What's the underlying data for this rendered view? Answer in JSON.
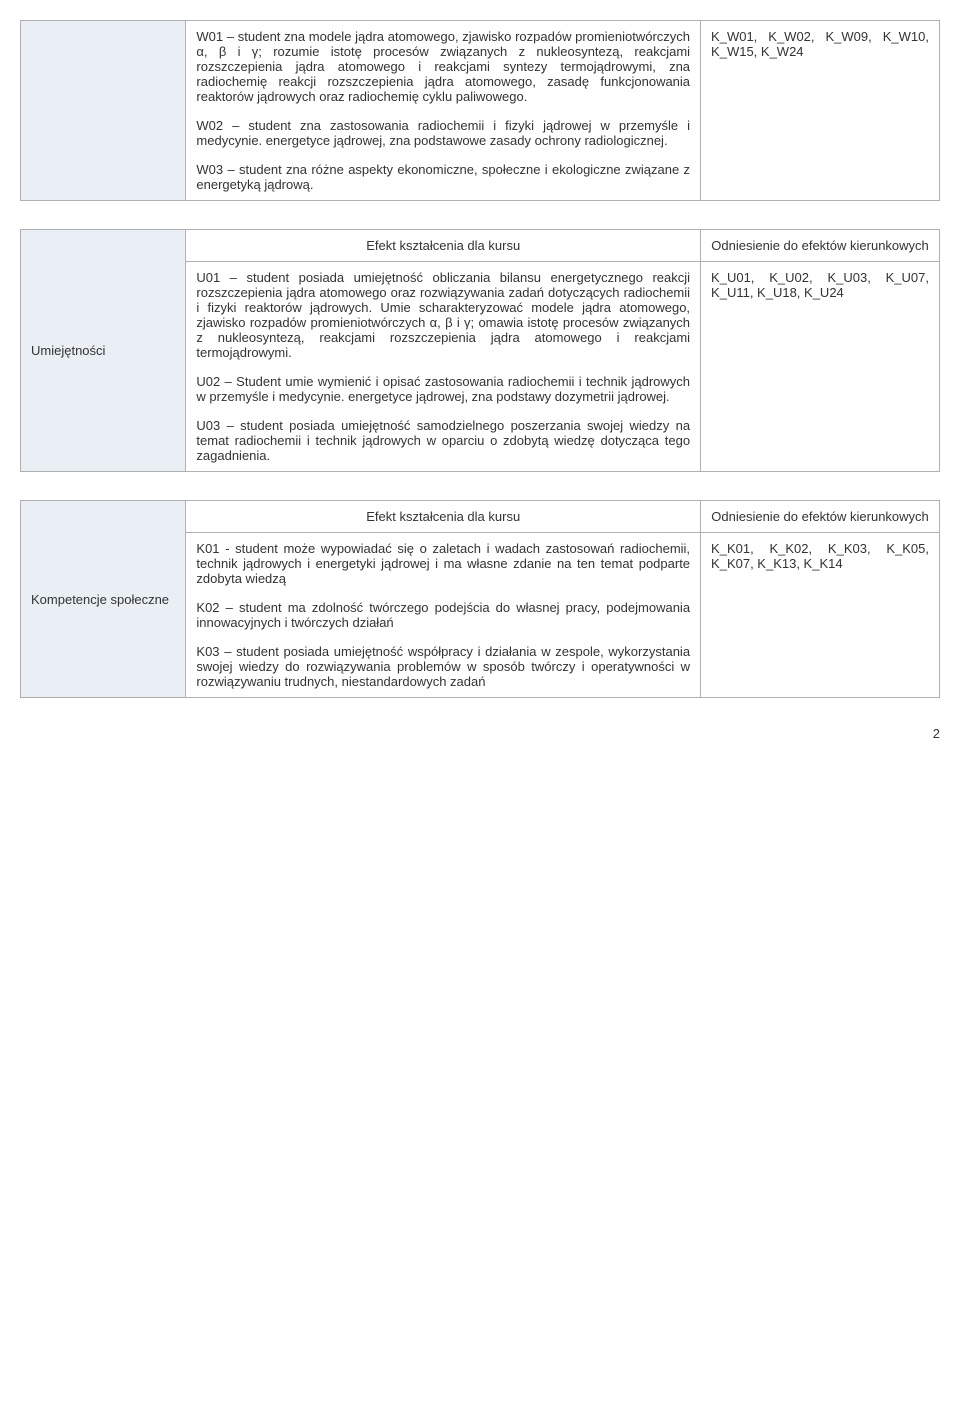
{
  "table1": {
    "row1": {
      "left": "",
      "mid_p1": "W01 – student zna modele jądra atomowego, zjawisko rozpadów promieniotwórczych α, β i γ; rozumie istotę procesów związanych z nukleosyntezą, reakcjami rozszczepienia jądra atomowego i reakcjami syntezy termojądrowymi, zna radiochemię reakcji rozszczepienia jądra atomowego, zasadę funkcjonowania reaktorów jądrowych oraz radiochemię cyklu paliwowego.",
      "mid_p2": "W02 – student zna zastosowania radiochemii i fizyki jądrowej w przemyśle i medycynie. energetyce jądrowej, zna podstawowe zasady ochrony radiologicznej.",
      "mid_p3": "W03 – student zna różne aspekty ekonomiczne, społeczne i ekologiczne związane z energetyką jądrową.",
      "right": "K_W01, K_W02, K_W09, K_W10, K_W15, K_W24"
    }
  },
  "table2": {
    "header": {
      "mid": "Efekt kształcenia dla kursu",
      "right": "Odniesienie do efektów kierunkowych"
    },
    "row1": {
      "left": "Umiejętności",
      "mid_p1": "U01 – student posiada umiejętność obliczania bilansu energetycznego reakcji rozszczepienia jądra atomowego oraz rozwiązywania zadań dotyczących radiochemii i fizyki reaktorów jądrowych. Umie scharakteryzować modele jądra atomowego, zjawisko rozpadów promieniotwórczych α, β i γ; omawia istotę procesów związanych z nukleosyntezą, reakcjami rozszczepienia jądra atomowego i reakcjami termojądrowymi.",
      "mid_p2": "U02 – Student umie wymienić i opisać zastosowania radiochemii i technik jądrowych w przemyśle i medycynie. energetyce jądrowej, zna podstawy dozymetrii jądrowej.",
      "mid_p3": "U03 – student posiada umiejętność samodzielnego poszerzania swojej wiedzy na temat radiochemii i technik jądrowych w oparciu o zdobytą wiedzę dotycząca tego zagadnienia.",
      "right": "K_U01, K_U02, K_U03, K_U07, K_U11, K_U18, K_U24"
    }
  },
  "table3": {
    "header": {
      "mid": "Efekt kształcenia dla kursu",
      "right": "Odniesienie do efektów kierunkowych"
    },
    "row1": {
      "left": "Kompetencje społeczne",
      "mid_p1": "K01 - student może wypowiadać się o zaletach i wadach zastosowań radiochemii, technik jądrowych i energetyki jądrowej i ma własne zdanie na ten temat podparte zdobyta wiedzą",
      "mid_p2": "K02 – student  ma zdolność twórczego podejścia do własnej pracy, podejmowania innowacyjnych i twórczych działań",
      "mid_p3": "K03 – student posiada umiejętność współpracy i działania w zespole, wykorzystania swojej wiedzy do rozwiązywania problemów w sposób twórczy i operatywności w rozwiązywaniu trudnych, niestandardowych zadań",
      "right": "K_K01, K_K02, K_K03, K_K05, K_K07, K_K13, K_K14"
    }
  },
  "page_number": "2"
}
